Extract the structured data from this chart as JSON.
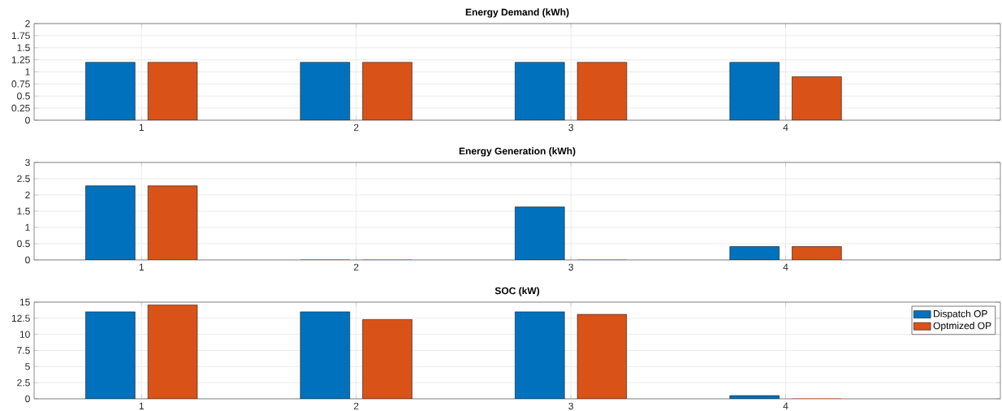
{
  "chart_data": [
    {
      "type": "bar",
      "title": "Energy Demand (kWh)",
      "x": [
        1,
        2,
        3,
        4
      ],
      "xlim": [
        0.5,
        5
      ],
      "xticks": [
        1,
        2,
        3,
        4
      ],
      "ylim": [
        0,
        2
      ],
      "yticks": [
        0,
        0.25,
        0.5,
        0.75,
        1,
        1.25,
        1.5,
        1.75,
        2
      ],
      "grid": true,
      "series": [
        {
          "color": "#0072bd",
          "values": [
            1.2,
            1.2,
            1.2,
            1.2
          ]
        },
        {
          "color": "#d95319",
          "values": [
            1.2,
            1.2,
            1.2,
            0.9
          ]
        }
      ]
    },
    {
      "type": "bar",
      "title": "Energy Generation (kWh)",
      "x": [
        1,
        2,
        3,
        4
      ],
      "xlim": [
        0.5,
        5
      ],
      "xticks": [
        1,
        2,
        3,
        4
      ],
      "ylim": [
        0,
        3
      ],
      "yticks": [
        0,
        0.5,
        1,
        1.5,
        2,
        2.5,
        3
      ],
      "grid": true,
      "series": [
        {
          "color": "#0072bd",
          "values": [
            2.28,
            0,
            1.63,
            0.41
          ]
        },
        {
          "color": "#d95319",
          "values": [
            2.28,
            0,
            0,
            0.41
          ]
        }
      ]
    },
    {
      "type": "bar",
      "title": "SOC (kW)",
      "x": [
        1,
        2,
        3,
        4
      ],
      "xlim": [
        0.5,
        5
      ],
      "xticks": [
        1,
        2,
        3,
        4
      ],
      "ylim": [
        0,
        15
      ],
      "yticks": [
        0,
        2.5,
        5,
        7.5,
        10,
        12.5,
        15
      ],
      "grid": true,
      "legend": "top right",
      "series": [
        {
          "name": "Dispatch OP",
          "color": "#0072bd",
          "values": [
            13.5,
            13.5,
            13.5,
            0.5
          ]
        },
        {
          "name": "Optmized OP",
          "color": "#d95319",
          "values": [
            14.6,
            12.3,
            13.1,
            0
          ]
        }
      ]
    }
  ]
}
